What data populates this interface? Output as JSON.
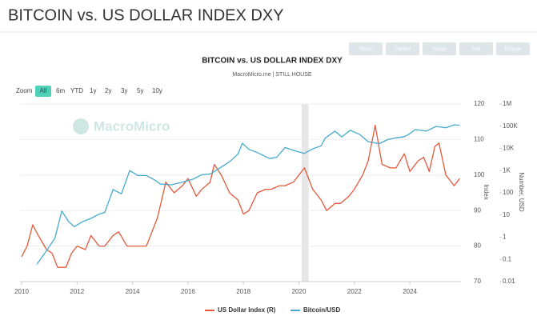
{
  "header": {
    "title": "BITCOIN vs. US DOLLAR INDEX DXY"
  },
  "toolbar": [
    "Share",
    "Content",
    "Image",
    "Edit",
    "Enlarge"
  ],
  "zoom": {
    "label": "Zoom",
    "options": [
      "All",
      "6m",
      "YTD",
      "1y",
      "2y",
      "3y",
      "5y",
      "10y"
    ],
    "active": 0
  },
  "watermark": "MacroMicro",
  "chart_data": {
    "type": "line",
    "title": "BITCOIN vs. US DOLLAR INDEX DXY",
    "subtitle": "MacroMicro.me | STILL HOUSE",
    "ylabel": "Index",
    "y2label": "Number, USD",
    "xlim": [
      2009.95,
      2025.85
    ],
    "xticks": [
      2010,
      2012,
      2014,
      2016,
      2018,
      2020,
      2022,
      2024
    ],
    "ylim": [
      70,
      120
    ],
    "yticks": [
      70,
      80,
      90,
      100,
      110,
      120
    ],
    "y2lim": [
      0.01,
      1000000
    ],
    "y2log": true,
    "y2ticks": [
      0.01,
      0.1,
      1,
      10,
      100,
      {
        "value": 1000,
        "label": "1K"
      },
      {
        "value": 10000,
        "label": "10K"
      },
      {
        "value": 100000,
        "label": "100K"
      },
      {
        "value": 1000000,
        "label": "1M"
      }
    ],
    "shaded": [
      [
        2020.1,
        2020.35
      ]
    ],
    "series": [
      {
        "name": "US Dollar Index (R)",
        "color": "#e4593b",
        "axis": "y",
        "x": [
          2010.0,
          2010.2,
          2010.4,
          2010.6,
          2010.9,
          2011.1,
          2011.3,
          2011.6,
          2011.8,
          2012.0,
          2012.3,
          2012.5,
          2012.8,
          2013.0,
          2013.3,
          2013.5,
          2013.8,
          2014.0,
          2014.3,
          2014.5,
          2014.7,
          2014.9,
          2015.2,
          2015.5,
          2015.8,
          2016.0,
          2016.3,
          2016.5,
          2016.8,
          2016.95,
          2017.2,
          2017.5,
          2017.8,
          2018.0,
          2018.2,
          2018.5,
          2018.8,
          2019.0,
          2019.3,
          2019.5,
          2019.8,
          2020.2,
          2020.5,
          2020.8,
          2021.0,
          2021.3,
          2021.5,
          2021.8,
          2022.0,
          2022.3,
          2022.5,
          2022.75,
          2023.0,
          2023.3,
          2023.5,
          2023.8,
          2024.0,
          2024.3,
          2024.5,
          2024.7,
          2024.9,
          2025.05,
          2025.3,
          2025.6,
          2025.8
        ],
        "values": [
          77,
          80,
          86,
          83,
          79,
          78,
          74,
          74,
          78,
          80,
          79,
          83,
          80,
          80,
          83,
          84,
          80,
          80,
          80,
          80,
          84,
          88,
          98,
          95,
          97,
          99,
          94,
          96,
          98,
          103,
          100,
          95,
          93,
          89,
          90,
          95,
          96,
          96,
          97,
          97,
          98,
          102,
          96,
          93,
          90,
          92,
          92,
          94,
          96,
          100,
          104,
          114,
          103,
          102,
          102,
          106,
          101,
          104,
          105,
          101,
          108,
          109,
          100,
          97,
          99
        ]
      },
      {
        "name": "Bitcoin/USD",
        "color": "#45aacd",
        "axis": "y2",
        "x": [
          2010.55,
          2010.9,
          2011.2,
          2011.45,
          2011.7,
          2011.9,
          2012.2,
          2012.5,
          2012.8,
          2013.0,
          2013.3,
          2013.6,
          2013.9,
          2014.2,
          2014.5,
          2014.8,
          2015.0,
          2015.4,
          2015.8,
          2016.2,
          2016.5,
          2016.8,
          2017.0,
          2017.5,
          2017.8,
          2017.96,
          2018.2,
          2018.5,
          2018.95,
          2019.2,
          2019.5,
          2019.9,
          2020.2,
          2020.5,
          2020.8,
          2020.95,
          2021.3,
          2021.55,
          2021.85,
          2022.2,
          2022.5,
          2022.9,
          2023.2,
          2023.5,
          2023.8,
          2023.95,
          2024.2,
          2024.6,
          2024.95,
          2025.3,
          2025.6,
          2025.8
        ],
        "values": [
          0.06,
          0.25,
          0.9,
          15,
          5,
          3,
          5,
          7,
          11,
          13,
          140,
          90,
          1000,
          600,
          600,
          380,
          250,
          230,
          300,
          420,
          650,
          700,
          1000,
          2500,
          5500,
          17000,
          9000,
          6500,
          3500,
          4000,
          11000,
          7500,
          6000,
          9500,
          13000,
          29000,
          60000,
          33000,
          65000,
          42000,
          20000,
          16500,
          25000,
          30000,
          34000,
          42000,
          70000,
          60000,
          98000,
          85000,
          115000,
          112000
        ]
      }
    ],
    "legend": "bottom"
  }
}
